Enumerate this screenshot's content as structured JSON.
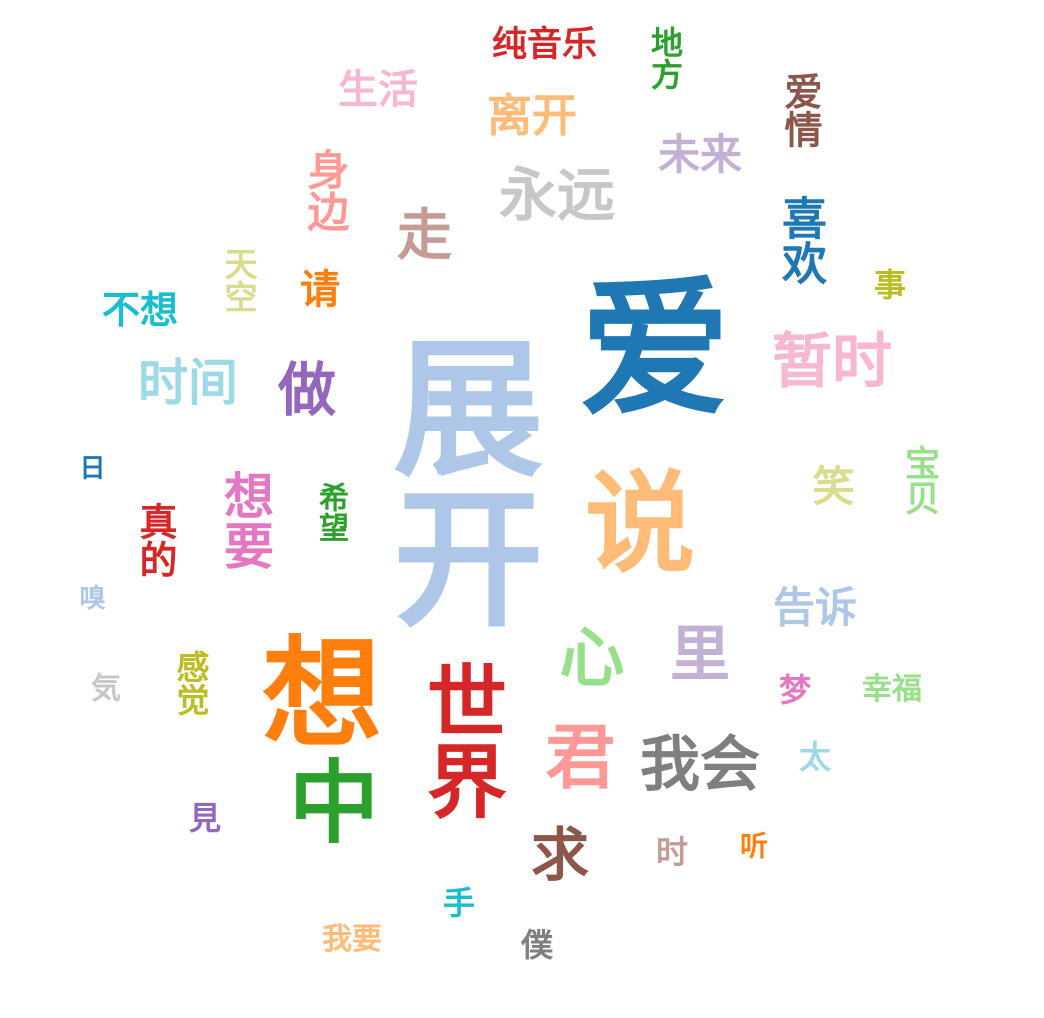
{
  "cloud": {
    "words": [
      {
        "text": "展开",
        "color": "#aec7e8",
        "orient": "rotated"
      },
      {
        "text": "爱",
        "color": "#1f77b4",
        "orient": "horizontal"
      },
      {
        "text": "想",
        "color": "#ff7f0e",
        "orient": "rotated"
      },
      {
        "text": "说",
        "color": "#ffbb78",
        "orient": "rotated"
      },
      {
        "text": "中",
        "color": "#2ca02c",
        "orient": "rotated"
      },
      {
        "text": "世界",
        "color": "#d62728",
        "orient": "rotated"
      },
      {
        "text": "心",
        "color": "#98df8a",
        "orient": "rotated"
      },
      {
        "text": "君",
        "color": "#ff9896",
        "orient": "rotated"
      },
      {
        "text": "里",
        "color": "#c5b0d5",
        "orient": "horizontal"
      },
      {
        "text": "我会",
        "color": "#7f7f7f",
        "orient": "horizontal"
      },
      {
        "text": "求",
        "color": "#8c564b",
        "orient": "horizontal"
      },
      {
        "text": "暂时",
        "color": "#f7b6d2",
        "orient": "horizontal"
      },
      {
        "text": "永远",
        "color": "#c7c7c7",
        "orient": "horizontal"
      },
      {
        "text": "走",
        "color": "#c49c94",
        "orient": "horizontal"
      },
      {
        "text": "做",
        "color": "#9467bd",
        "orient": "horizontal"
      },
      {
        "text": "想要",
        "color": "#e377c2",
        "orient": "rotated"
      },
      {
        "text": "时间",
        "color": "#9edae5",
        "orient": "horizontal"
      },
      {
        "text": "喜欢",
        "color": "#1f77b4",
        "orient": "rotated"
      },
      {
        "text": "爱情",
        "color": "#8c564b",
        "orient": "rotated"
      },
      {
        "text": "离开",
        "color": "#ffbb78",
        "orient": "horizontal"
      },
      {
        "text": "未来",
        "color": "#c5b0d5",
        "orient": "horizontal"
      },
      {
        "text": "身边",
        "color": "#ff9896",
        "orient": "rotated"
      },
      {
        "text": "生活",
        "color": "#f7b6d2",
        "orient": "horizontal"
      },
      {
        "text": "纯音乐",
        "color": "#d62728",
        "orient": "horizontal"
      },
      {
        "text": "地方",
        "color": "#2ca02c",
        "orient": "rotated"
      },
      {
        "text": "天空",
        "color": "#dbdb8d",
        "orient": "rotated"
      },
      {
        "text": "不想",
        "color": "#17becf",
        "orient": "horizontal"
      },
      {
        "text": "请",
        "color": "#ff7f0e",
        "orient": "horizontal"
      },
      {
        "text": "事",
        "color": "#bcbd22",
        "orient": "horizontal"
      },
      {
        "text": "真的",
        "color": "#d62728",
        "orient": "rotated"
      },
      {
        "text": "希望",
        "color": "#2ca02c",
        "orient": "rotated"
      },
      {
        "text": "感觉",
        "color": "#bcbd22",
        "orient": "rotated"
      },
      {
        "text": "告诉",
        "color": "#aec7e8",
        "orient": "horizontal"
      },
      {
        "text": "笑",
        "color": "#dbdb8d",
        "orient": "rotated"
      },
      {
        "text": "宝贝",
        "color": "#98df8a",
        "orient": "rotated"
      },
      {
        "text": "梦",
        "color": "#e377c2",
        "orient": "horizontal"
      },
      {
        "text": "幸福",
        "color": "#98df8a",
        "orient": "horizontal"
      },
      {
        "text": "太",
        "color": "#9edae5",
        "orient": "horizontal"
      },
      {
        "text": "时",
        "color": "#c49c94",
        "orient": "horizontal"
      },
      {
        "text": "听",
        "color": "#ff7f0e",
        "orient": "rotated"
      },
      {
        "text": "手",
        "color": "#17becf",
        "orient": "rotated"
      },
      {
        "text": "我要",
        "color": "#ffbb78",
        "orient": "horizontal"
      },
      {
        "text": "僕",
        "color": "#7f7f7f",
        "orient": "horizontal"
      },
      {
        "text": "見",
        "color": "#9467bd",
        "orient": "horizontal"
      },
      {
        "text": "気",
        "color": "#c7c7c7",
        "orient": "rotated"
      },
      {
        "text": "嗅",
        "color": "#aec7e8",
        "orient": "rotated"
      },
      {
        "text": "日",
        "color": "#1f77b4",
        "orient": "rotated"
      }
    ]
  }
}
